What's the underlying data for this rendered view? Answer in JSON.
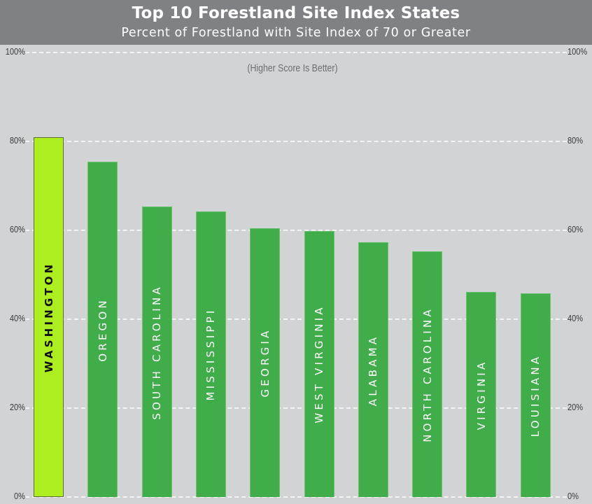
{
  "header": {
    "title": "Top 10 Forestland Site Index States",
    "subtitle": "Percent of Forestland with Site Index of 70 or Greater"
  },
  "note": "(Higher Score Is Better)",
  "colors": {
    "header_bg": "#808184",
    "plot_bg": "#d2d3d5",
    "bar": "#41ac4a",
    "highlight_bar": "#acee1f",
    "gridline": "#f4f4f5"
  },
  "axis": {
    "ticks": [
      {
        "value": 100,
        "label": "100%"
      },
      {
        "value": 80,
        "label": "80%"
      },
      {
        "value": 60,
        "label": "60%"
      },
      {
        "value": 40,
        "label": "40%"
      },
      {
        "value": 20,
        "label": "20%"
      },
      {
        "value": 0,
        "label": "0%"
      }
    ]
  },
  "chart_data": {
    "type": "bar",
    "title": "Top 10 Forestland Site Index States",
    "subtitle": "Percent of Forestland with Site Index of 70 or Greater",
    "annotation": "(Higher Score Is Better)",
    "categories": [
      "WASHINGTON",
      "OREGON",
      "SOUTH CAROLINA",
      "MISSISSIPPI",
      "GEORGIA",
      "WEST VIRGINIA",
      "ALABAMA",
      "NORTH CAROLINA",
      "VIRGINIA",
      "LOUISIANA"
    ],
    "values": [
      81.0,
      75.4,
      65.4,
      64.3,
      60.5,
      59.9,
      57.3,
      55.3,
      46.1,
      45.8
    ],
    "highlight": [
      "WASHINGTON"
    ],
    "xlabel": "",
    "ylabel": "",
    "ylim": [
      0,
      100
    ],
    "ytick_labels": [
      "0%",
      "20%",
      "40%",
      "60%",
      "80%",
      "100%"
    ],
    "y_axis_both_sides": true,
    "grid": "horizontal dashed",
    "legend": "none",
    "labels_inside_bars_rotated": true
  }
}
